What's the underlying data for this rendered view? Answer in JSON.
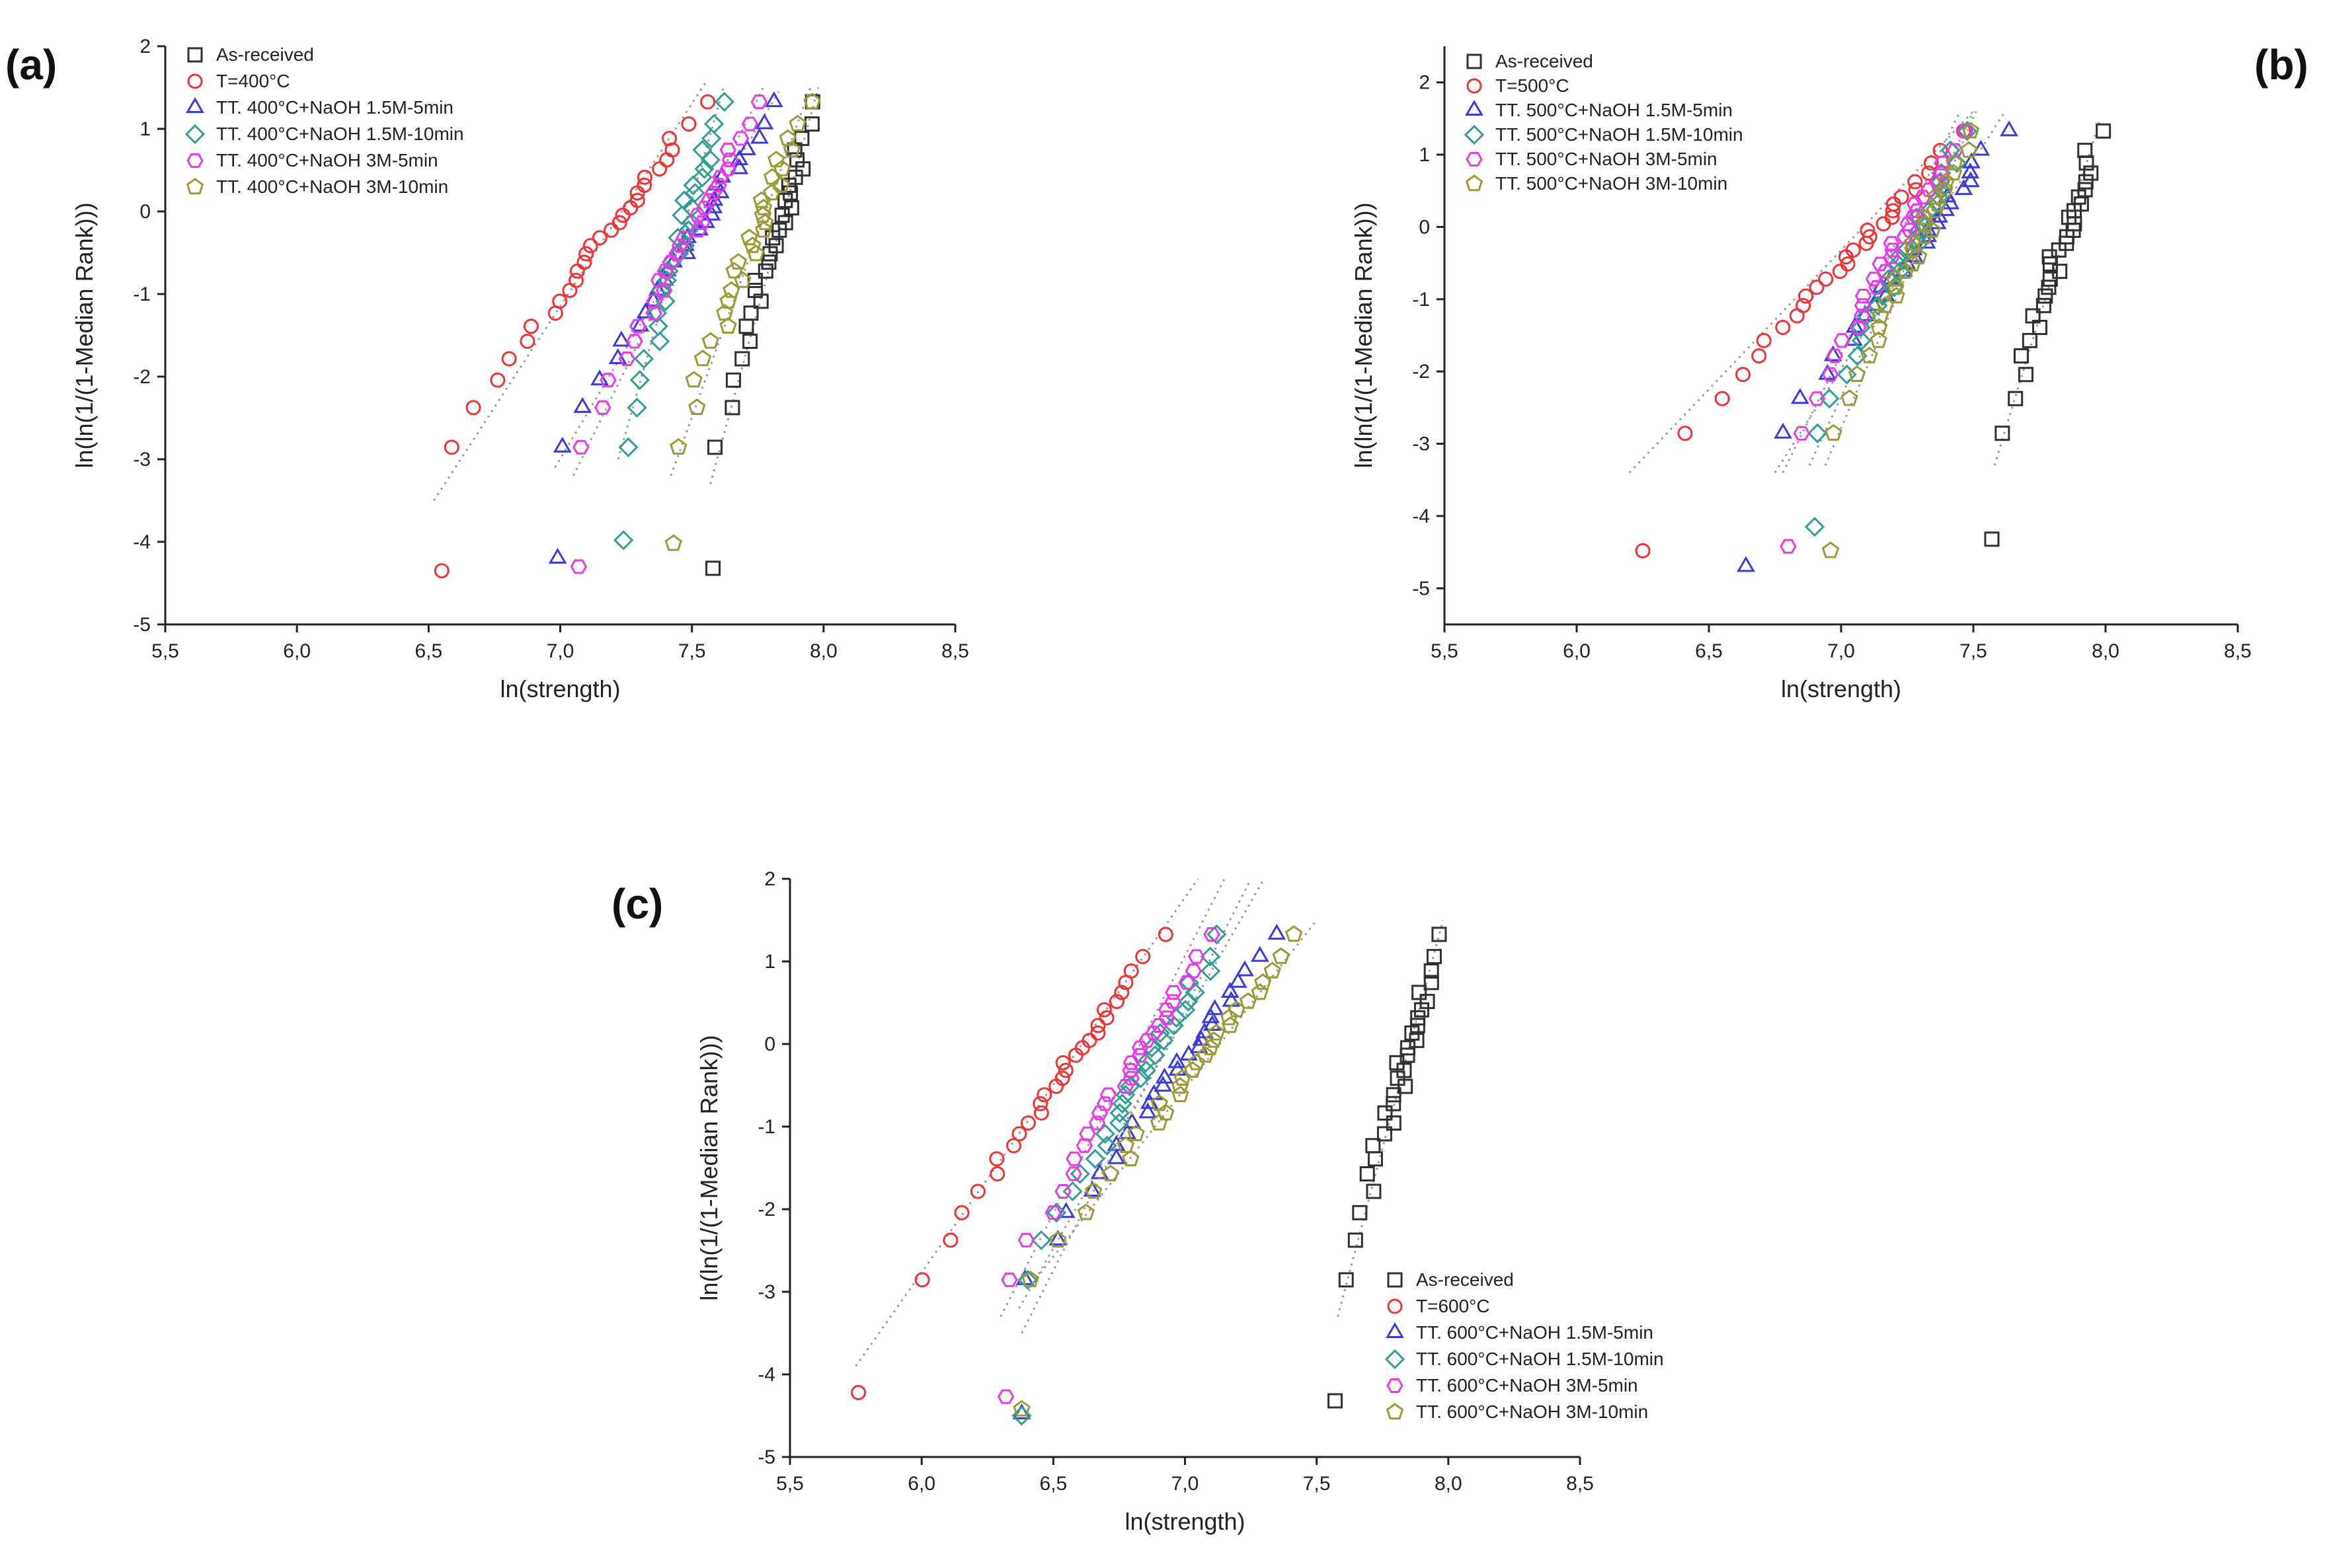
{
  "figure": {
    "panel_labels": [
      "(a)",
      "(b)",
      "(c)"
    ]
  },
  "colors": {
    "As-received": "#303030",
    "T": "#ee3333",
    "NaOH 1.5M-5min": "#3b3bdd",
    "NaOH 1.5M-10min": "#2f9f94",
    "NaOH 3M-5min": "#e83ae8",
    "NaOH 3M-10min": "#9a9a36",
    "fit": "#9a9a9a"
  },
  "markers": {
    "As-received": "square",
    "T": "circle",
    "NaOH 1.5M-5min": "triangle",
    "NaOH 1.5M-10min": "diamond",
    "NaOH 3M-5min": "hexagon",
    "NaOH 3M-10min": "pentagon"
  },
  "chart_data": [
    {
      "panel": "(a)",
      "type": "scatter",
      "xlabel": "ln(strength)",
      "ylabel": "ln(ln(1/(1-Median Rank)))",
      "xlim": [
        5.5,
        8.5
      ],
      "ylim": [
        -5,
        2
      ],
      "xticks": [
        5.5,
        6.0,
        6.5,
        7.0,
        7.5,
        8.0,
        8.5
      ],
      "xtick_labels": [
        "5,5",
        "6,0",
        "6,5",
        "7,0",
        "7,5",
        "8,0",
        "8,5"
      ],
      "yticks": [
        -5,
        -4,
        -3,
        -2,
        -1,
        0,
        1,
        2
      ],
      "ytick_labels": [
        "-5",
        "-4",
        "-3",
        "-2",
        "-1",
        "0",
        "1",
        "2"
      ],
      "legend_position": "top-left",
      "series": [
        {
          "name": "As-received",
          "key": "As-received",
          "x_min": 7.58,
          "x_max": 7.97,
          "outlier": [
            7.58,
            -4.32
          ],
          "fit": [
            [
              7.57,
              -3.3
            ],
            [
              7.98,
              1.5
            ]
          ]
        },
        {
          "name": "T=400°C",
          "key": "T",
          "x_min": 6.58,
          "x_max": 7.54,
          "outlier": [
            6.55,
            -4.35
          ],
          "fit": [
            [
              6.52,
              -3.5
            ],
            [
              7.56,
              1.6
            ]
          ]
        },
        {
          "name": "TT. 400°C+NaOH 1.5M-5min",
          "key": "NaOH 1.5M-5min",
          "x_min": 7.0,
          "x_max": 7.82,
          "outlier": [
            6.99,
            -4.2
          ],
          "fit": [
            [
              6.98,
              -3.1
            ],
            [
              7.83,
              1.45
            ]
          ]
        },
        {
          "name": "TT. 400°C+NaOH 1.5M-10min",
          "key": "NaOH 1.5M-10min",
          "x_min": 7.25,
          "x_max": 7.6,
          "outlier": [
            7.24,
            -3.98
          ],
          "fit": [
            [
              7.22,
              -3.0
            ],
            [
              7.62,
              1.5
            ]
          ]
        },
        {
          "name": "TT. 400°C+NaOH 3M-5min",
          "key": "NaOH 3M-5min",
          "x_min": 7.07,
          "x_max": 7.76,
          "outlier": [
            7.07,
            -4.3
          ],
          "fit": [
            [
              7.05,
              -3.2
            ],
            [
              7.77,
              1.5
            ]
          ]
        },
        {
          "name": "TT. 400°C+NaOH 3M-10min",
          "key": "NaOH 3M-10min",
          "x_min": 7.44,
          "x_max": 7.93,
          "outlier": [
            7.43,
            -4.02
          ],
          "fit": [
            [
              7.42,
              -3.2
            ],
            [
              7.95,
              1.5
            ]
          ]
        }
      ]
    },
    {
      "panel": "(b)",
      "type": "scatter",
      "xlabel": "ln(strength)",
      "ylabel": "ln(ln(1/(1-Median Rank)))",
      "xlim": [
        5.5,
        8.5
      ],
      "ylim": [
        -5.5,
        2.5
      ],
      "xticks": [
        5.5,
        6.0,
        6.5,
        7.0,
        7.5,
        8.0,
        8.5
      ],
      "xtick_labels": [
        "5,5",
        "6,0",
        "6,5",
        "7,0",
        "7,5",
        "8,0",
        "8,5"
      ],
      "yticks": [
        -5,
        -4,
        -3,
        -2,
        -1,
        0,
        1,
        2
      ],
      "ytick_labels": [
        "-5",
        "-4",
        "-3",
        "-2",
        "-1",
        "0",
        "1",
        "2"
      ],
      "legend_position": "top-left",
      "series": [
        {
          "name": "As-received",
          "key": "As-received",
          "x_min": 7.6,
          "x_max": 7.97,
          "outlier": [
            7.57,
            -4.32
          ],
          "fit": [
            [
              7.58,
              -3.3
            ],
            [
              7.98,
              1.5
            ]
          ]
        },
        {
          "name": "T=500°C",
          "key": "T",
          "x_min": 6.4,
          "x_max": 7.47,
          "outlier": [
            6.25,
            -4.48
          ],
          "fit": [
            [
              6.2,
              -3.4
            ],
            [
              7.5,
              1.6
            ]
          ]
        },
        {
          "name": "TT. 500°C+NaOH 1.5M-5min",
          "key": "NaOH 1.5M-5min",
          "x_min": 6.77,
          "x_max": 7.61,
          "outlier": [
            6.64,
            -4.7
          ],
          "fit": [
            [
              6.75,
              -3.4
            ],
            [
              7.62,
              1.6
            ]
          ]
        },
        {
          "name": "TT. 500°C+NaOH 1.5M-10min",
          "key": "NaOH 1.5M-10min",
          "x_min": 6.9,
          "x_max": 7.48,
          "outlier": [
            6.9,
            -4.15
          ],
          "fit": [
            [
              6.88,
              -3.3
            ],
            [
              7.5,
              1.6
            ]
          ]
        },
        {
          "name": "TT. 500°C+NaOH 3M-5min",
          "key": "NaOH 3M-5min",
          "x_min": 6.84,
          "x_max": 7.44,
          "outlier": [
            6.8,
            -4.42
          ],
          "fit": [
            [
              6.78,
              -3.4
            ],
            [
              7.45,
              1.6
            ]
          ]
        },
        {
          "name": "TT. 500°C+NaOH 3M-10min",
          "key": "NaOH 3M-10min",
          "x_min": 6.96,
          "x_max": 7.49,
          "outlier": [
            6.96,
            -4.48
          ],
          "fit": [
            [
              6.94,
              -3.3
            ],
            [
              7.51,
              1.6
            ]
          ]
        }
      ]
    },
    {
      "panel": "(c)",
      "type": "scatter",
      "xlabel": "ln(strength)",
      "ylabel": "ln(ln(1/(1-Median Rank)))",
      "xlim": [
        5.5,
        8.5
      ],
      "ylim": [
        -5,
        2
      ],
      "xticks": [
        5.5,
        6.0,
        6.5,
        7.0,
        7.5,
        8.0,
        8.5
      ],
      "xtick_labels": [
        "5,5",
        "6,0",
        "6,5",
        "7,0",
        "7,5",
        "8,0",
        "8,5"
      ],
      "yticks": [
        -5,
        -4,
        -3,
        -2,
        -1,
        0,
        1,
        2
      ],
      "ytick_labels": [
        "-5",
        "-4",
        "-3",
        "-2",
        "-1",
        "0",
        "1",
        "2"
      ],
      "legend_position": "bottom-right",
      "series": [
        {
          "name": "As-received",
          "key": "As-received",
          "x_min": 7.6,
          "x_max": 7.97,
          "outlier": [
            7.57,
            -4.32
          ],
          "fit": [
            [
              7.58,
              -3.3
            ],
            [
              7.98,
              1.5
            ]
          ]
        },
        {
          "name": "T=600°C",
          "key": "T",
          "x_min": 5.99,
          "x_max": 6.9,
          "outlier": [
            5.76,
            -4.22
          ],
          "fit": [
            [
              5.75,
              -3.9
            ],
            [
              7.05,
              2.0
            ]
          ]
        },
        {
          "name": "TT. 600°C+NaOH 1.5M-5min",
          "key": "NaOH 1.5M-5min",
          "x_min": 6.38,
          "x_max": 7.35,
          "outlier": [
            6.38,
            -4.48
          ],
          "fit": [
            [
              6.37,
              -3.2
            ],
            [
              7.3,
              2.0
            ]
          ]
        },
        {
          "name": "TT. 600°C+NaOH 1.5M-10min",
          "key": "NaOH 1.5M-10min",
          "x_min": 6.39,
          "x_max": 7.15,
          "outlier": [
            6.38,
            -4.5
          ],
          "fit": [
            [
              6.38,
              -3.5
            ],
            [
              7.25,
              2.0
            ]
          ]
        },
        {
          "name": "TT. 600°C+NaOH 3M-5min",
          "key": "NaOH 3M-5min",
          "x_min": 6.32,
          "x_max": 7.1,
          "outlier": [
            6.32,
            -4.27
          ],
          "fit": [
            [
              6.3,
              -3.3
            ],
            [
              7.15,
              2.0
            ]
          ]
        },
        {
          "name": "TT. 600°C+NaOH 3M-10min",
          "key": "NaOH 3M-10min",
          "x_min": 6.4,
          "x_max": 7.44,
          "outlier": [
            6.38,
            -4.42
          ],
          "fit": [
            [
              6.42,
              -2.9
            ],
            [
              7.5,
              1.5
            ]
          ]
        }
      ]
    }
  ]
}
